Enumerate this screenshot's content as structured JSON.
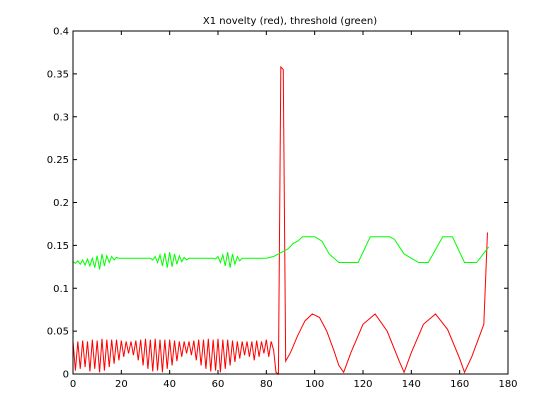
{
  "chart_data": {
    "type": "line",
    "title": "X1 novelty (red), threshold (green)",
    "xlabel": "",
    "ylabel": "",
    "xlim": [
      0,
      180
    ],
    "ylim": [
      0,
      0.4
    ],
    "x_ticks": [
      0,
      20,
      40,
      60,
      80,
      100,
      120,
      140,
      160,
      180
    ],
    "y_ticks": [
      0,
      0.05,
      0.1,
      0.15,
      0.2,
      0.25,
      0.3,
      0.35,
      0.4
    ],
    "x_tick_labels": [
      "0",
      "20",
      "40",
      "60",
      "80",
      "100",
      "120",
      "140",
      "160",
      "180"
    ],
    "y_tick_labels": [
      "0",
      "0.05",
      "0.1",
      "0.15",
      "0.2",
      "0.25",
      "0.3",
      "0.35",
      "0.4"
    ],
    "grid": false,
    "series": [
      {
        "color": "#ff0000",
        "x": [
          0,
          1,
          2,
          3,
          4,
          5,
          6,
          7,
          8,
          9,
          10,
          11,
          12,
          13,
          14,
          15,
          16,
          17,
          18,
          19,
          20,
          21,
          22,
          23,
          24,
          25,
          26,
          27,
          28,
          29,
          30,
          31,
          32,
          33,
          34,
          35,
          36,
          37,
          38,
          39,
          40,
          41,
          42,
          43,
          44,
          45,
          46,
          47,
          48,
          49,
          50,
          51,
          52,
          53,
          54,
          55,
          56,
          57,
          58,
          59,
          60,
          61,
          62,
          63,
          64,
          65,
          66,
          67,
          68,
          69,
          70,
          71,
          72,
          73,
          74,
          75,
          76,
          77,
          78,
          79,
          80,
          81,
          82,
          83,
          84,
          85,
          86,
          87,
          88,
          90,
          93,
          96,
          99,
          102,
          105,
          108,
          110,
          112,
          115,
          120,
          125,
          130,
          135,
          137,
          140,
          145,
          150,
          155,
          160,
          162,
          165,
          170,
          171.5
        ],
        "y": [
          0.038,
          0.004,
          0.038,
          0.006,
          0.039,
          0.008,
          0.038,
          0.003,
          0.04,
          0.006,
          0.039,
          0.002,
          0.041,
          0.004,
          0.04,
          0.008,
          0.04,
          0.012,
          0.04,
          0.016,
          0.039,
          0.02,
          0.038,
          0.024,
          0.038,
          0.022,
          0.039,
          0.016,
          0.04,
          0.01,
          0.041,
          0.006,
          0.04,
          0.003,
          0.041,
          0.004,
          0.04,
          0.002,
          0.04,
          0.006,
          0.04,
          0.01,
          0.039,
          0.015,
          0.038,
          0.02,
          0.038,
          0.024,
          0.038,
          0.022,
          0.039,
          0.016,
          0.04,
          0.01,
          0.04,
          0.006,
          0.041,
          0.003,
          0.04,
          0.004,
          0.041,
          0.002,
          0.04,
          0.006,
          0.04,
          0.01,
          0.039,
          0.014,
          0.038,
          0.018,
          0.038,
          0.022,
          0.038,
          0.02,
          0.038,
          0.016,
          0.039,
          0.02,
          0.038,
          0.024,
          0.04,
          0.02,
          0.038,
          0.028,
          0.002,
          0.0,
          0.358,
          0.355,
          0.015,
          0.025,
          0.045,
          0.062,
          0.07,
          0.066,
          0.05,
          0.027,
          0.01,
          0.002,
          0.025,
          0.058,
          0.07,
          0.05,
          0.015,
          0.002,
          0.025,
          0.058,
          0.07,
          0.052,
          0.018,
          0.002,
          0.02,
          0.058,
          0.165
        ]
      },
      {
        "color": "#00ff00",
        "x": [
          0,
          1,
          2,
          3,
          4,
          5,
          6,
          7,
          8,
          9,
          10,
          11,
          12,
          13,
          14,
          15,
          16,
          17,
          18,
          19,
          20,
          25,
          30,
          32,
          33,
          34,
          35,
          36,
          37,
          38,
          39,
          40,
          41,
          42,
          43,
          44,
          45,
          46,
          47,
          48,
          50,
          55,
          58,
          59,
          60,
          61,
          62,
          63,
          64,
          65,
          66,
          67,
          68,
          69,
          70,
          75,
          80,
          83,
          85,
          87,
          89,
          91,
          93,
          95,
          99,
          100,
          103,
          106,
          110,
          113,
          118,
          123,
          127,
          131,
          133,
          137,
          143,
          147,
          153,
          157,
          162,
          167,
          172
        ],
        "y": [
          0.131,
          0.129,
          0.132,
          0.128,
          0.133,
          0.127,
          0.134,
          0.126,
          0.135,
          0.124,
          0.138,
          0.122,
          0.14,
          0.126,
          0.138,
          0.13,
          0.137,
          0.133,
          0.136,
          0.135,
          0.135,
          0.135,
          0.135,
          0.135,
          0.133,
          0.137,
          0.13,
          0.139,
          0.126,
          0.141,
          0.124,
          0.142,
          0.125,
          0.14,
          0.128,
          0.138,
          0.131,
          0.136,
          0.133,
          0.135,
          0.135,
          0.135,
          0.135,
          0.134,
          0.137,
          0.13,
          0.139,
          0.126,
          0.142,
          0.124,
          0.14,
          0.128,
          0.137,
          0.132,
          0.135,
          0.135,
          0.135,
          0.137,
          0.14,
          0.143,
          0.146,
          0.152,
          0.155,
          0.16,
          0.16,
          0.16,
          0.155,
          0.14,
          0.13,
          0.13,
          0.13,
          0.16,
          0.16,
          0.16,
          0.157,
          0.14,
          0.13,
          0.13,
          0.16,
          0.16,
          0.13,
          0.13,
          0.148
        ]
      }
    ]
  }
}
